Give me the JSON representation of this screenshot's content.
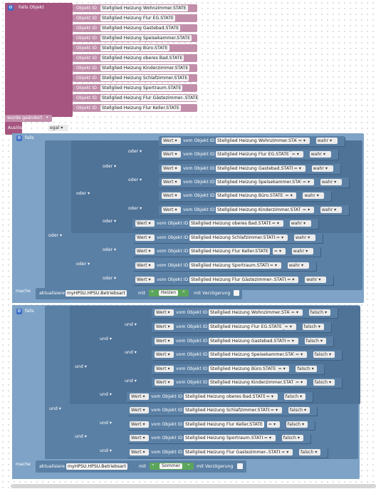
{
  "trigger": {
    "title": "Falls Objekt",
    "id_label": "Objekt ID",
    "objects": [
      "Stellglied Heizung Wohnzimmer.STATE",
      "Stellglied Heizung Flur EG.STATE",
      "Stellglied Heizung Gastebad.STATE",
      "Stellglied Heizung Speisekammer.STATE",
      "Stellglied Heizung Büro.STATE",
      "Stellglied Heizung oberes Bad.STATE",
      "Stellglied Heizung Kinderzimmer.STATE",
      "Stellglied Heizung Schlafzimmer.STATE",
      "Stellglied Heizung Sportraum.STATE",
      "Stellglied Heizung Flur Gästezimmer-.STATE",
      "Stellglied Heizung Flur Keller.STATE"
    ],
    "event": "wurde geändert",
    "trigger_label": "Auslösung durch",
    "trigger_value": "egal"
  },
  "labels": {
    "falls": "falls",
    "mache": "mache",
    "oder": "oder",
    "und": "und",
    "wert": "Wert",
    "vom": "vom Objekt ID",
    "eq": "=",
    "update": "aktualisiere",
    "mit": "mit",
    "delay": "mit Verzögerung"
  },
  "block1": {
    "compare_value": "wahr",
    "rows": [
      "Stellglied Heizung Wohnzimmer.STATE",
      "Stellglied Heizung Flur EG.STATE",
      "Stellglied Heizung Gastebad.STATE",
      "Stellglied Heizung Speisekammer.STATE",
      "Stellglied Heizung Büro.STATE",
      "Stellglied Heizung Kinderzimmer.STATE",
      "Stellglied Heizung oberes Bad.STATE",
      "Stellglied Heizung Schlafzimmer.STATE",
      "Stellglied Heizung Flur Keller.STATE",
      "Stellglied Heizung Sportraum.STATE",
      "Stellglied Heizung Flur Gästezimmer-.STATE"
    ],
    "target": "myHPSU.HPSU.Betriebsart",
    "value": "Heizen"
  },
  "block2": {
    "compare_value": "falsch",
    "rows": [
      "Stellglied Heizung Wohnzimmer.STATE",
      "Stellglied Heizung Flur EG.STATE",
      "Stellglied Heizung Gastebad.STATE",
      "Stellglied Heizung Speisekammer.STATE",
      "Stellglied Heizung Büro.STATE",
      "Stellglied Heizung Kinderzimmer.STATE",
      "Stellglied Heizung oberes Bad.STATE",
      "Stellglied Heizung Schlafzimmer.STATE",
      "Stellglied Heizung Flur Keller.STATE",
      "Stellglied Heizung Sportraum.STATE",
      "Stellglied Heizung Flur Gastezimmer-.STATE"
    ],
    "target": "myHPSU.HPSU.Betriebsart",
    "value": "Sommer"
  }
}
